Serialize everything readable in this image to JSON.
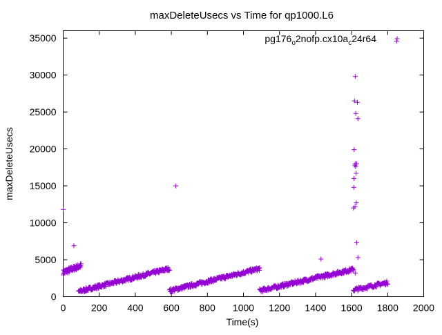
{
  "chart_data": {
    "type": "scatter",
    "title": "maxDeleteUsecs vs Time for qp1000.L6",
    "xlabel": "Time(s)",
    "ylabel": "maxDeleteUsecs",
    "xlim": [
      0,
      2000
    ],
    "ylim": [
      0,
      36000
    ],
    "xticks": [
      0,
      200,
      400,
      600,
      800,
      1000,
      1200,
      1400,
      1600,
      1800,
      2000
    ],
    "yticks": [
      0,
      5000,
      10000,
      15000,
      20000,
      25000,
      30000,
      35000
    ],
    "grid": false,
    "legend_position": "top-right",
    "series": [
      {
        "legend_parts": [
          "pg176",
          "o",
          "2nofp.cx10a",
          "c",
          "24r64"
        ],
        "color": "#9400d3",
        "marker": "plus",
        "segments": [
          {
            "x0": 0,
            "x1": 100,
            "y0": 3300,
            "y1": 4200,
            "step": 1.5,
            "noise": 350
          },
          {
            "x0": 85,
            "x1": 590,
            "y0": 700,
            "y1": 3800,
            "step": 2,
            "noise": 250
          },
          {
            "x0": 590,
            "x1": 1090,
            "y0": 800,
            "y1": 3800,
            "step": 2,
            "noise": 250
          },
          {
            "x0": 1090,
            "x1": 1610,
            "y0": 800,
            "y1": 3700,
            "step": 2,
            "noise": 250
          },
          {
            "x0": 1610,
            "x1": 1800,
            "y0": 900,
            "y1": 1900,
            "step": 2.5,
            "noise": 250
          }
        ],
        "points": [
          [
            0,
            11800
          ],
          [
            59,
            6900
          ],
          [
            625,
            15000
          ],
          [
            1430,
            5100
          ],
          [
            1610,
            12000
          ],
          [
            1612,
            14800
          ],
          [
            1613,
            16000
          ],
          [
            1614,
            19900
          ],
          [
            1616,
            26500
          ],
          [
            1618,
            17800
          ],
          [
            1619,
            12200
          ],
          [
            1620,
            18000
          ],
          [
            1620,
            29800
          ],
          [
            1622,
            17600
          ],
          [
            1623,
            24800
          ],
          [
            1625,
            16700
          ],
          [
            1626,
            12700
          ],
          [
            1628,
            7300
          ],
          [
            1628,
            18000
          ],
          [
            1632,
            26300
          ],
          [
            1635,
            24100
          ],
          [
            1635,
            5300
          ],
          [
            1620,
            3200
          ],
          [
            1850,
            34600
          ]
        ]
      }
    ]
  }
}
